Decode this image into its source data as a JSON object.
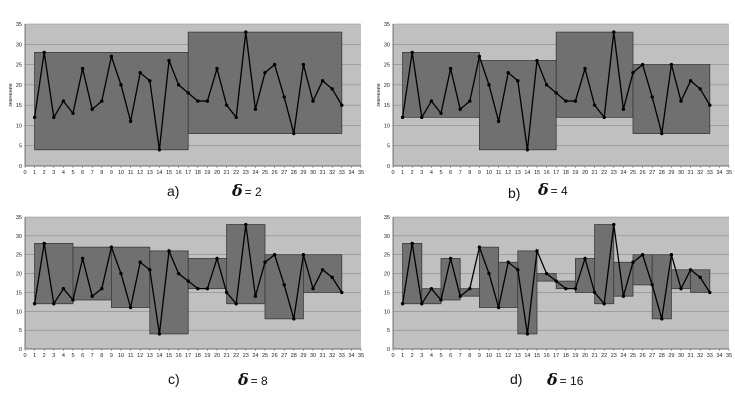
{
  "chart_data": [
    {
      "type": "line",
      "panel_label": "a)",
      "delta_symbol": "δ",
      "delta_value": "= 2",
      "ylabel": "значение",
      "xlim": [
        0,
        35
      ],
      "ylim": [
        0,
        35
      ],
      "xticks": [
        0,
        1,
        2,
        3,
        4,
        5,
        6,
        7,
        8,
        9,
        10,
        11,
        12,
        13,
        14,
        15,
        16,
        17,
        18,
        19,
        20,
        21,
        22,
        23,
        24,
        25,
        26,
        27,
        28,
        29,
        30,
        31,
        32,
        33,
        34,
        35
      ],
      "yticks": [
        0,
        5,
        10,
        15,
        20,
        25,
        30,
        35
      ],
      "grid": true,
      "series": [
        {
          "values": [
            12,
            28,
            12,
            16,
            13,
            24,
            14,
            16,
            27,
            20,
            11,
            23,
            21,
            4,
            26,
            20,
            18,
            16,
            16,
            24,
            15,
            12,
            33,
            14,
            23,
            25,
            17,
            8,
            25,
            16,
            21,
            19,
            15
          ]
        }
      ],
      "boxes": [
        {
          "x_from": 1,
          "x_to": 17,
          "y_from": 4,
          "y_to": 28
        },
        {
          "x_from": 17,
          "x_to": 33,
          "y_from": 8,
          "y_to": 33
        }
      ]
    },
    {
      "type": "line",
      "panel_label": "b)",
      "delta_symbol": "δ",
      "delta_value": "= 4",
      "ylabel": "значение",
      "xlim": [
        0,
        35
      ],
      "ylim": [
        0,
        35
      ],
      "xticks": [
        0,
        1,
        2,
        3,
        4,
        5,
        6,
        7,
        8,
        9,
        10,
        11,
        12,
        13,
        14,
        15,
        16,
        17,
        18,
        19,
        20,
        21,
        22,
        23,
        24,
        25,
        26,
        27,
        28,
        29,
        30,
        31,
        32,
        33,
        34,
        35
      ],
      "yticks": [
        0,
        5,
        10,
        15,
        20,
        25,
        30,
        35
      ],
      "grid": true,
      "series": [
        {
          "values": [
            12,
            28,
            12,
            16,
            13,
            24,
            14,
            16,
            27,
            20,
            11,
            23,
            21,
            4,
            26,
            20,
            18,
            16,
            16,
            24,
            15,
            12,
            33,
            14,
            23,
            25,
            17,
            8,
            25,
            16,
            21,
            19,
            15
          ]
        }
      ],
      "boxes": [
        {
          "x_from": 1,
          "x_to": 9,
          "y_from": 12,
          "y_to": 28
        },
        {
          "x_from": 9,
          "x_to": 17,
          "y_from": 4,
          "y_to": 26
        },
        {
          "x_from": 17,
          "x_to": 25,
          "y_from": 12,
          "y_to": 33
        },
        {
          "x_from": 25,
          "x_to": 33,
          "y_from": 8,
          "y_to": 25
        }
      ]
    },
    {
      "type": "line",
      "panel_label": "c)",
      "delta_symbol": "δ",
      "delta_value": "=  8",
      "ylabel": "",
      "xlim": [
        0,
        35
      ],
      "ylim": [
        0,
        35
      ],
      "xticks": [
        0,
        1,
        2,
        3,
        4,
        5,
        6,
        7,
        8,
        9,
        10,
        11,
        12,
        13,
        14,
        15,
        16,
        17,
        18,
        19,
        20,
        21,
        22,
        23,
        24,
        25,
        26,
        27,
        28,
        29,
        30,
        31,
        32,
        33,
        34,
        35
      ],
      "yticks": [
        0,
        5,
        10,
        15,
        20,
        25,
        30,
        35
      ],
      "grid": true,
      "series": [
        {
          "values": [
            12,
            28,
            12,
            16,
            13,
            24,
            14,
            16,
            27,
            20,
            11,
            23,
            21,
            4,
            26,
            20,
            18,
            16,
            16,
            24,
            15,
            12,
            33,
            14,
            23,
            25,
            17,
            8,
            25,
            16,
            21,
            19,
            15
          ]
        }
      ],
      "boxes": [
        {
          "x_from": 1,
          "x_to": 5,
          "y_from": 12,
          "y_to": 28
        },
        {
          "x_from": 5,
          "x_to": 9,
          "y_from": 13,
          "y_to": 27
        },
        {
          "x_from": 9,
          "x_to": 13,
          "y_from": 11,
          "y_to": 27
        },
        {
          "x_from": 13,
          "x_to": 17,
          "y_from": 4,
          "y_to": 26
        },
        {
          "x_from": 17,
          "x_to": 21,
          "y_from": 16,
          "y_to": 24
        },
        {
          "x_from": 21,
          "x_to": 25,
          "y_from": 12,
          "y_to": 33
        },
        {
          "x_from": 25,
          "x_to": 29,
          "y_from": 8,
          "y_to": 25
        },
        {
          "x_from": 29,
          "x_to": 33,
          "y_from": 15,
          "y_to": 25
        }
      ]
    },
    {
      "type": "line",
      "panel_label": "d)",
      "delta_symbol": "δ",
      "delta_value": "= 16",
      "ylabel": "",
      "xlim": [
        0,
        35
      ],
      "ylim": [
        0,
        35
      ],
      "xticks": [
        0,
        1,
        2,
        3,
        4,
        5,
        6,
        7,
        8,
        9,
        10,
        11,
        12,
        13,
        14,
        15,
        16,
        17,
        18,
        19,
        20,
        21,
        22,
        23,
        24,
        25,
        26,
        27,
        28,
        29,
        30,
        31,
        32,
        33,
        34,
        35
      ],
      "yticks": [
        0,
        5,
        10,
        15,
        20,
        25,
        30,
        35
      ],
      "grid": true,
      "series": [
        {
          "values": [
            12,
            28,
            12,
            16,
            13,
            24,
            14,
            16,
            27,
            20,
            11,
            23,
            21,
            4,
            26,
            20,
            18,
            16,
            16,
            24,
            15,
            12,
            33,
            14,
            23,
            25,
            17,
            8,
            25,
            16,
            21,
            19,
            15
          ]
        }
      ],
      "boxes": [
        {
          "x_from": 1,
          "x_to": 3,
          "y_from": 12,
          "y_to": 28
        },
        {
          "x_from": 3,
          "x_to": 5,
          "y_from": 12,
          "y_to": 16
        },
        {
          "x_from": 5,
          "x_to": 7,
          "y_from": 13,
          "y_to": 24
        },
        {
          "x_from": 7,
          "x_to": 9,
          "y_from": 14,
          "y_to": 16
        },
        {
          "x_from": 9,
          "x_to": 11,
          "y_from": 11,
          "y_to": 27
        },
        {
          "x_from": 11,
          "x_to": 13,
          "y_from": 11,
          "y_to": 23
        },
        {
          "x_from": 13,
          "x_to": 15,
          "y_from": 4,
          "y_to": 26
        },
        {
          "x_from": 15,
          "x_to": 17,
          "y_from": 18,
          "y_to": 20
        },
        {
          "x_from": 17,
          "x_to": 19,
          "y_from": 16,
          "y_to": 18
        },
        {
          "x_from": 19,
          "x_to": 21,
          "y_from": 15,
          "y_to": 24
        },
        {
          "x_from": 21,
          "x_to": 23,
          "y_from": 12,
          "y_to": 33
        },
        {
          "x_from": 23,
          "x_to": 25,
          "y_from": 14,
          "y_to": 23
        },
        {
          "x_from": 25,
          "x_to": 27,
          "y_from": 17,
          "y_to": 25
        },
        {
          "x_from": 27,
          "x_to": 29,
          "y_from": 8,
          "y_to": 25
        },
        {
          "x_from": 29,
          "x_to": 31,
          "y_from": 16,
          "y_to": 21
        },
        {
          "x_from": 31,
          "x_to": 33,
          "y_from": 15,
          "y_to": 21
        }
      ]
    }
  ]
}
